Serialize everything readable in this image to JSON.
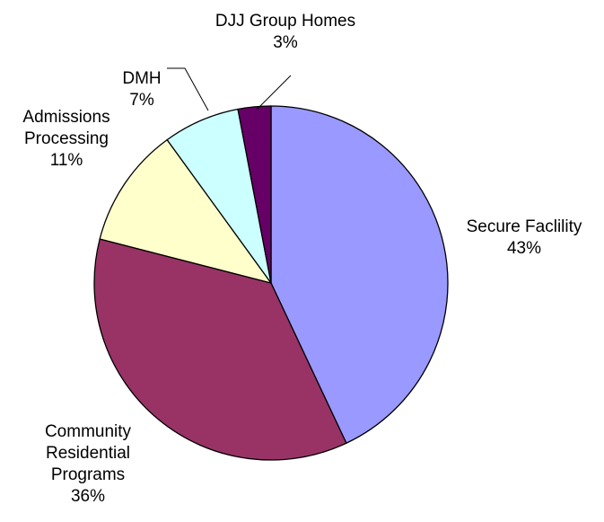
{
  "chart_data": {
    "type": "pie",
    "title": "",
    "slices": [
      {
        "name_lines": [
          "Secure Faclility"
        ],
        "pct_label": "43%",
        "value": 43,
        "color": "#9999ff"
      },
      {
        "name_lines": [
          "Community",
          "Residential",
          "Programs"
        ],
        "pct_label": "36%",
        "value": 36,
        "color": "#993366"
      },
      {
        "name_lines": [
          "Admissions",
          "Processing"
        ],
        "pct_label": "11%",
        "value": 11,
        "color": "#ffffcc"
      },
      {
        "name_lines": [
          "DMH"
        ],
        "pct_label": "7%",
        "value": 7,
        "color": "#ccffff"
      },
      {
        "name_lines": [
          "DJJ Group Homes"
        ],
        "pct_label": "3%",
        "value": 3,
        "color": "#660066"
      }
    ],
    "start_angle_deg": 0,
    "direction": "clockwise",
    "legend": "none"
  }
}
